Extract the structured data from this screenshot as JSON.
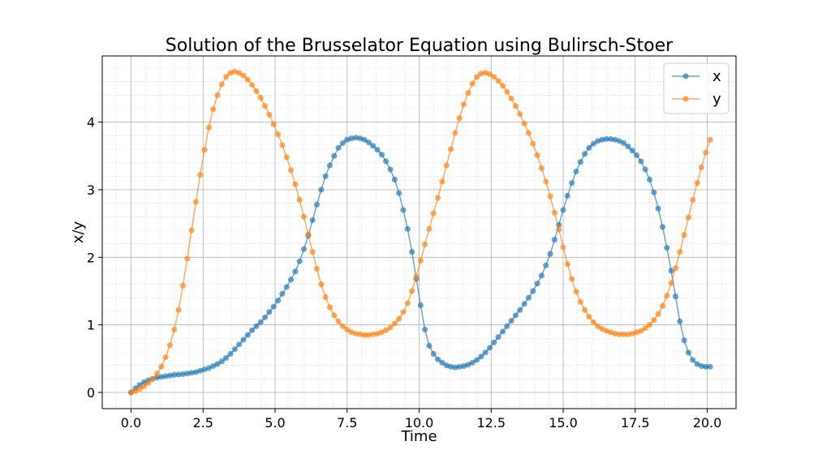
{
  "chart_data": {
    "type": "line",
    "title": "Solution of the Brusselator Equation using Bulirsch-Stoer",
    "xlabel": "Time",
    "ylabel": "x/y",
    "xlim": [
      -1.0,
      21.0
    ],
    "ylim": [
      -0.24,
      4.98
    ],
    "xticks": [
      0.0,
      2.5,
      5.0,
      7.5,
      10.0,
      12.5,
      15.0,
      17.5,
      20.0
    ],
    "xtick_labels": [
      "0.0",
      "2.5",
      "5.0",
      "7.5",
      "10.0",
      "12.5",
      "15.0",
      "17.5",
      "20.0"
    ],
    "yticks": [
      0,
      1,
      2,
      3,
      4
    ],
    "ytick_labels": [
      "0",
      "1",
      "2",
      "3",
      "4"
    ],
    "grid": "major and minor",
    "legend_position": "top-right",
    "marker": "circle",
    "series": [
      {
        "name": "x",
        "color": "#1f77b4",
        "points": [
          [
            0.0,
            0.0
          ],
          [
            0.15,
            0.06
          ],
          [
            0.3,
            0.11
          ],
          [
            0.45,
            0.15
          ],
          [
            0.6,
            0.18
          ],
          [
            0.75,
            0.2
          ],
          [
            0.9,
            0.22
          ],
          [
            1.05,
            0.23
          ],
          [
            1.2,
            0.24
          ],
          [
            1.35,
            0.25
          ],
          [
            1.5,
            0.26
          ],
          [
            1.65,
            0.265
          ],
          [
            1.8,
            0.27
          ],
          [
            1.95,
            0.28
          ],
          [
            2.1,
            0.29
          ],
          [
            2.25,
            0.3
          ],
          [
            2.4,
            0.32
          ],
          [
            2.55,
            0.34
          ],
          [
            2.7,
            0.36
          ],
          [
            2.85,
            0.39
          ],
          [
            3.0,
            0.42
          ],
          [
            3.15,
            0.46
          ],
          [
            3.3,
            0.51
          ],
          [
            3.45,
            0.57
          ],
          [
            3.6,
            0.64
          ],
          [
            3.75,
            0.71
          ],
          [
            3.9,
            0.78
          ],
          [
            4.05,
            0.85
          ],
          [
            4.2,
            0.92
          ],
          [
            4.35,
            0.98
          ],
          [
            4.5,
            1.04
          ],
          [
            4.65,
            1.11
          ],
          [
            4.8,
            1.19
          ],
          [
            4.95,
            1.27
          ],
          [
            5.1,
            1.36
          ],
          [
            5.25,
            1.46
          ],
          [
            5.4,
            1.56
          ],
          [
            5.55,
            1.67
          ],
          [
            5.7,
            1.79
          ],
          [
            5.85,
            1.94
          ],
          [
            6.0,
            2.12
          ],
          [
            6.15,
            2.32
          ],
          [
            6.3,
            2.55
          ],
          [
            6.45,
            2.78
          ],
          [
            6.6,
            3.0
          ],
          [
            6.75,
            3.2
          ],
          [
            6.9,
            3.36
          ],
          [
            7.05,
            3.5
          ],
          [
            7.2,
            3.62
          ],
          [
            7.35,
            3.69
          ],
          [
            7.5,
            3.74
          ],
          [
            7.65,
            3.76
          ],
          [
            7.8,
            3.77
          ],
          [
            7.95,
            3.76
          ],
          [
            8.1,
            3.74
          ],
          [
            8.25,
            3.7
          ],
          [
            8.4,
            3.65
          ],
          [
            8.55,
            3.59
          ],
          [
            8.7,
            3.52
          ],
          [
            8.85,
            3.42
          ],
          [
            9.0,
            3.3
          ],
          [
            9.15,
            3.15
          ],
          [
            9.3,
            2.95
          ],
          [
            9.45,
            2.7
          ],
          [
            9.6,
            2.42
          ],
          [
            9.75,
            2.08
          ],
          [
            9.9,
            1.68
          ],
          [
            10.05,
            1.29
          ],
          [
            10.2,
            0.93
          ],
          [
            10.35,
            0.69
          ],
          [
            10.5,
            0.57
          ],
          [
            10.65,
            0.49
          ],
          [
            10.8,
            0.44
          ],
          [
            10.95,
            0.4
          ],
          [
            11.1,
            0.38
          ],
          [
            11.25,
            0.37
          ],
          [
            11.4,
            0.38
          ],
          [
            11.55,
            0.39
          ],
          [
            11.7,
            0.41
          ],
          [
            11.85,
            0.44
          ],
          [
            12.0,
            0.48
          ],
          [
            12.15,
            0.53
          ],
          [
            12.3,
            0.59
          ],
          [
            12.45,
            0.66
          ],
          [
            12.6,
            0.74
          ],
          [
            12.75,
            0.82
          ],
          [
            12.9,
            0.9
          ],
          [
            13.05,
            0.98
          ],
          [
            13.2,
            1.06
          ],
          [
            13.35,
            1.14
          ],
          [
            13.5,
            1.22
          ],
          [
            13.65,
            1.31
          ],
          [
            13.8,
            1.4
          ],
          [
            13.95,
            1.5
          ],
          [
            14.1,
            1.61
          ],
          [
            14.25,
            1.73
          ],
          [
            14.4,
            1.88
          ],
          [
            14.55,
            2.05
          ],
          [
            14.7,
            2.26
          ],
          [
            14.85,
            2.48
          ],
          [
            15.0,
            2.7
          ],
          [
            15.15,
            2.91
          ],
          [
            15.3,
            3.1
          ],
          [
            15.45,
            3.27
          ],
          [
            15.6,
            3.41
          ],
          [
            15.75,
            3.53
          ],
          [
            15.9,
            3.62
          ],
          [
            16.05,
            3.68
          ],
          [
            16.2,
            3.72
          ],
          [
            16.35,
            3.74
          ],
          [
            16.5,
            3.75
          ],
          [
            16.65,
            3.75
          ],
          [
            16.8,
            3.74
          ],
          [
            16.95,
            3.72
          ],
          [
            17.1,
            3.69
          ],
          [
            17.25,
            3.64
          ],
          [
            17.4,
            3.58
          ],
          [
            17.55,
            3.51
          ],
          [
            17.7,
            3.42
          ],
          [
            17.85,
            3.3
          ],
          [
            18.0,
            3.15
          ],
          [
            18.15,
            2.96
          ],
          [
            18.3,
            2.72
          ],
          [
            18.45,
            2.45
          ],
          [
            18.6,
            2.14
          ],
          [
            18.75,
            1.8
          ],
          [
            18.9,
            1.42
          ],
          [
            19.05,
            1.05
          ],
          [
            19.2,
            0.77
          ],
          [
            19.35,
            0.59
          ],
          [
            19.5,
            0.48
          ],
          [
            19.65,
            0.42
          ],
          [
            19.8,
            0.39
          ],
          [
            19.95,
            0.38
          ],
          [
            20.1,
            0.38
          ]
        ]
      },
      {
        "name": "y",
        "color": "#ff7f0e",
        "points": [
          [
            0.0,
            0.0
          ],
          [
            0.15,
            0.02
          ],
          [
            0.3,
            0.05
          ],
          [
            0.45,
            0.09
          ],
          [
            0.6,
            0.14
          ],
          [
            0.75,
            0.2
          ],
          [
            0.9,
            0.28
          ],
          [
            1.05,
            0.38
          ],
          [
            1.2,
            0.52
          ],
          [
            1.35,
            0.7
          ],
          [
            1.5,
            0.93
          ],
          [
            1.65,
            1.22
          ],
          [
            1.8,
            1.58
          ],
          [
            1.95,
            1.98
          ],
          [
            2.1,
            2.4
          ],
          [
            2.25,
            2.82
          ],
          [
            2.4,
            3.22
          ],
          [
            2.55,
            3.59
          ],
          [
            2.7,
            3.92
          ],
          [
            2.85,
            4.19
          ],
          [
            3.0,
            4.4
          ],
          [
            3.15,
            4.56
          ],
          [
            3.3,
            4.67
          ],
          [
            3.45,
            4.73
          ],
          [
            3.6,
            4.75
          ],
          [
            3.75,
            4.73
          ],
          [
            3.9,
            4.69
          ],
          [
            4.05,
            4.63
          ],
          [
            4.2,
            4.55
          ],
          [
            4.35,
            4.46
          ],
          [
            4.5,
            4.36
          ],
          [
            4.65,
            4.24
          ],
          [
            4.8,
            4.11
          ],
          [
            4.95,
            3.97
          ],
          [
            5.1,
            3.82
          ],
          [
            5.25,
            3.66
          ],
          [
            5.4,
            3.48
          ],
          [
            5.55,
            3.29
          ],
          [
            5.7,
            3.08
          ],
          [
            5.85,
            2.85
          ],
          [
            6.0,
            2.6
          ],
          [
            6.15,
            2.34
          ],
          [
            6.3,
            2.08
          ],
          [
            6.45,
            1.83
          ],
          [
            6.6,
            1.6
          ],
          [
            6.75,
            1.41
          ],
          [
            6.9,
            1.26
          ],
          [
            7.05,
            1.14
          ],
          [
            7.2,
            1.05
          ],
          [
            7.35,
            0.98
          ],
          [
            7.5,
            0.93
          ],
          [
            7.65,
            0.89
          ],
          [
            7.8,
            0.87
          ],
          [
            7.95,
            0.86
          ],
          [
            8.1,
            0.85
          ],
          [
            8.25,
            0.85
          ],
          [
            8.4,
            0.86
          ],
          [
            8.55,
            0.87
          ],
          [
            8.7,
            0.89
          ],
          [
            8.85,
            0.92
          ],
          [
            9.0,
            0.96
          ],
          [
            9.15,
            1.02
          ],
          [
            9.3,
            1.09
          ],
          [
            9.45,
            1.19
          ],
          [
            9.6,
            1.32
          ],
          [
            9.75,
            1.5
          ],
          [
            9.9,
            1.71
          ],
          [
            10.05,
            1.95
          ],
          [
            10.2,
            2.19
          ],
          [
            10.35,
            2.42
          ],
          [
            10.5,
            2.65
          ],
          [
            10.65,
            2.88
          ],
          [
            10.8,
            3.12
          ],
          [
            10.95,
            3.36
          ],
          [
            11.1,
            3.6
          ],
          [
            11.25,
            3.84
          ],
          [
            11.4,
            4.06
          ],
          [
            11.55,
            4.26
          ],
          [
            11.7,
            4.43
          ],
          [
            11.85,
            4.57
          ],
          [
            12.0,
            4.67
          ],
          [
            12.15,
            4.72
          ],
          [
            12.3,
            4.73
          ],
          [
            12.45,
            4.71
          ],
          [
            12.6,
            4.67
          ],
          [
            12.75,
            4.61
          ],
          [
            12.9,
            4.54
          ],
          [
            13.05,
            4.45
          ],
          [
            13.2,
            4.35
          ],
          [
            13.35,
            4.24
          ],
          [
            13.5,
            4.12
          ],
          [
            13.65,
            3.98
          ],
          [
            13.8,
            3.84
          ],
          [
            13.95,
            3.68
          ],
          [
            14.1,
            3.51
          ],
          [
            14.25,
            3.32
          ],
          [
            14.4,
            3.12
          ],
          [
            14.55,
            2.9
          ],
          [
            14.7,
            2.66
          ],
          [
            14.85,
            2.41
          ],
          [
            15.0,
            2.15
          ],
          [
            15.15,
            1.9
          ],
          [
            15.3,
            1.68
          ],
          [
            15.45,
            1.49
          ],
          [
            15.6,
            1.34
          ],
          [
            15.75,
            1.22
          ],
          [
            15.9,
            1.12
          ],
          [
            16.05,
            1.04
          ],
          [
            16.2,
            0.98
          ],
          [
            16.35,
            0.94
          ],
          [
            16.5,
            0.91
          ],
          [
            16.65,
            0.89
          ],
          [
            16.8,
            0.87
          ],
          [
            16.95,
            0.86
          ],
          [
            17.1,
            0.86
          ],
          [
            17.25,
            0.86
          ],
          [
            17.4,
            0.87
          ],
          [
            17.55,
            0.89
          ],
          [
            17.7,
            0.91
          ],
          [
            17.85,
            0.95
          ],
          [
            18.0,
            1.0
          ],
          [
            18.15,
            1.07
          ],
          [
            18.3,
            1.16
          ],
          [
            18.45,
            1.28
          ],
          [
            18.6,
            1.43
          ],
          [
            18.75,
            1.62
          ],
          [
            18.9,
            1.84
          ],
          [
            19.05,
            2.08
          ],
          [
            19.2,
            2.33
          ],
          [
            19.35,
            2.59
          ],
          [
            19.5,
            2.85
          ],
          [
            19.65,
            3.1
          ],
          [
            19.8,
            3.33
          ],
          [
            19.95,
            3.55
          ],
          [
            20.1,
            3.74
          ]
        ]
      }
    ]
  }
}
